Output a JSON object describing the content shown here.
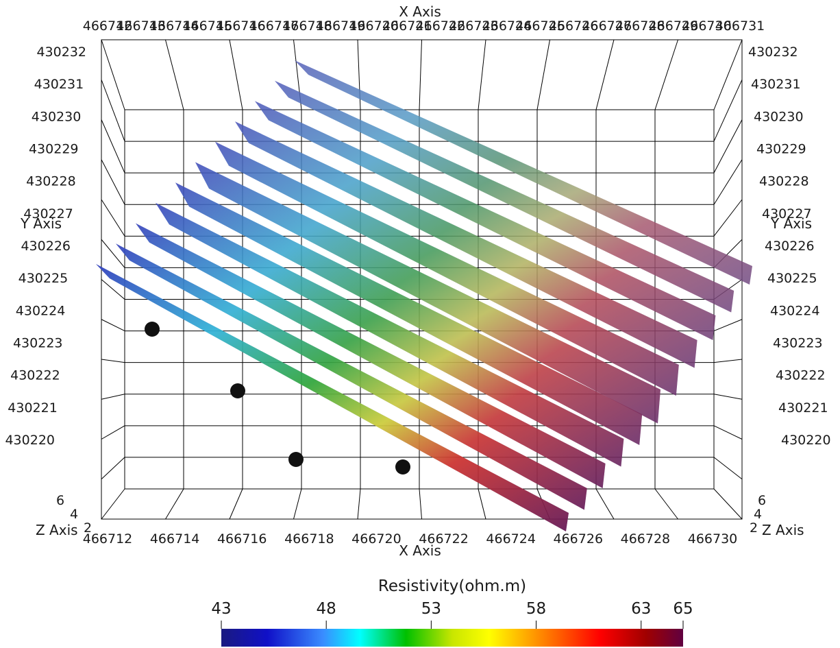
{
  "axes": {
    "x_title": "X Axis",
    "y_title": "Y Axis",
    "z_title": "Z Axis",
    "x_ticks_top": [
      "466712",
      "466713",
      "466714",
      "466715",
      "466716",
      "466717",
      "466718",
      "466719",
      "466720",
      "466721",
      "466722",
      "466723",
      "466724",
      "466725",
      "466726",
      "466727",
      "466728",
      "466729",
      "466730",
      "466731"
    ],
    "x_ticks_bottom": [
      "466712",
      "466714",
      "466716",
      "466718",
      "466720",
      "466722",
      "466724",
      "466726",
      "466728",
      "466730"
    ],
    "y_ticks": [
      "430232",
      "430231",
      "430230",
      "430229",
      "430228",
      "430227",
      "430226",
      "430225",
      "430224",
      "430223",
      "430222",
      "430221",
      "430220"
    ],
    "z_ticks": [
      "6",
      "4",
      "2"
    ]
  },
  "colorbar": {
    "title": "Resistivity(ohm.m)",
    "ticks": [
      "43",
      "48",
      "53",
      "58",
      "63",
      "65"
    ],
    "range": [
      43,
      65
    ],
    "tick_values": [
      43,
      48,
      53,
      58,
      63,
      65
    ],
    "stops": [
      "#1a1a80",
      "#1010c8",
      "#3a8cff",
      "#00ffff",
      "#00c000",
      "#c8e600",
      "#ffff00",
      "#ff8000",
      "#ff0000",
      "#a00000",
      "#600040"
    ]
  },
  "scene": {
    "section_count": 11,
    "section_fill": "#7a7cb0",
    "electrode_color": "#111111",
    "electrode_count": 4
  }
}
